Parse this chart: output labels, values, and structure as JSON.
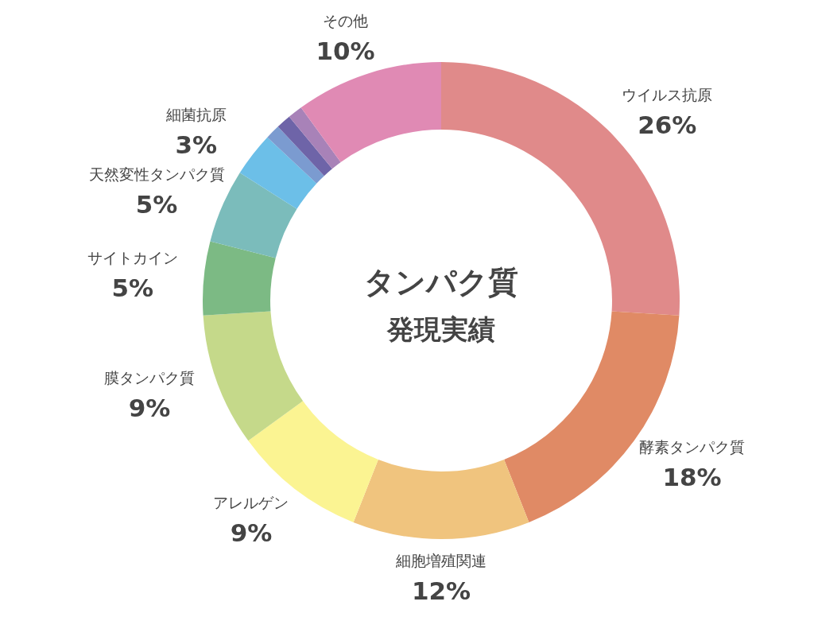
{
  "chart_data": {
    "type": "donut",
    "title": "タンパク質",
    "subtitle": "発現実績",
    "categories": [
      "ウイルス抗原",
      "酵素タンパク質",
      "細胞増殖関連",
      "アレルゲン",
      "膜タンパク質",
      "サイトカイン",
      "天然変性タンパク質",
      "細菌抗原",
      null,
      null,
      null,
      "その他"
    ],
    "values": [
      26,
      18,
      12,
      9,
      9,
      5,
      5,
      3,
      1,
      1,
      1,
      10
    ],
    "value_labels": [
      "26%",
      "18%",
      "12%",
      "9%",
      "9%",
      "5%",
      "5%",
      "3%",
      null,
      null,
      null,
      "10%"
    ],
    "colors": [
      "#e08a8a",
      "#e08a65",
      "#f0c47e",
      "#fbf492",
      "#c5d98a",
      "#7cba84",
      "#7bbcbb",
      "#6cbfe8",
      "#7b9bd0",
      "#6e64a8",
      "#a882b8",
      "#e08ab4"
    ]
  }
}
